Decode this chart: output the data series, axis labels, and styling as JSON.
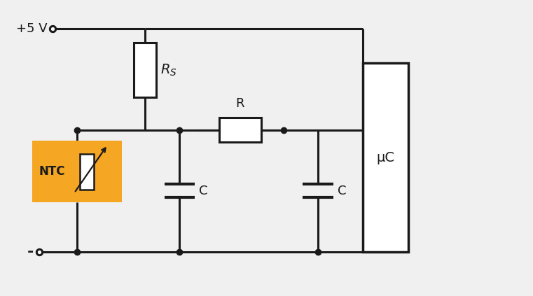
{
  "bg_color": "#f0f0f0",
  "line_color": "#1a1a1a",
  "orange_color": "#F5A623",
  "lw": 2.2,
  "dot_size": 6,
  "figsize": [
    7.61,
    4.23
  ],
  "dpi": 100,
  "plus5v": "+5 V",
  "minus": "-",
  "label_R": "R",
  "label_C": "C",
  "label_NTC": "NTC",
  "label_uC": "μC"
}
